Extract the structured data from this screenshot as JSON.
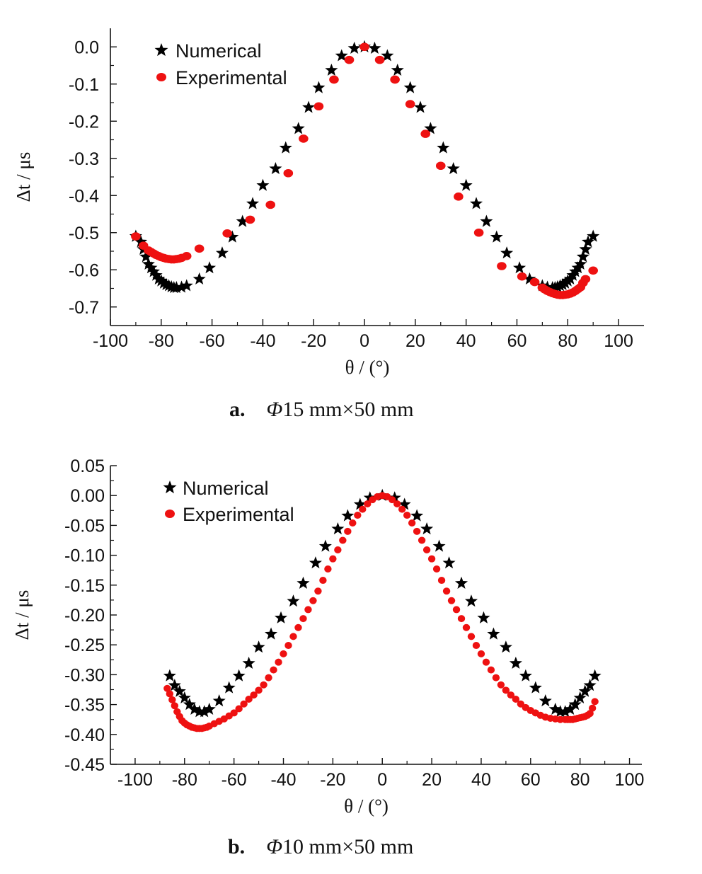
{
  "chart_data": [
    {
      "type": "scatter",
      "panel_label": "a.",
      "caption_symbol": "Φ",
      "caption_text": "15 mm×50 mm",
      "xlabel": "θ / (°)",
      "ylabel": "Δt / μs",
      "xlim": [
        -100,
        110
      ],
      "ylim": [
        -0.75,
        0.05
      ],
      "xticks": [
        -100,
        -80,
        -60,
        -40,
        -20,
        0,
        20,
        40,
        60,
        80,
        100
      ],
      "xtick_labels": [
        "-100",
        "-80",
        "-60",
        "-40",
        "-20",
        "0",
        "20",
        "40",
        "60",
        "80",
        "100"
      ],
      "yticks": [
        0.0,
        -0.1,
        -0.2,
        -0.3,
        -0.4,
        -0.5,
        -0.6,
        -0.7
      ],
      "ytick_labels": [
        "0.0",
        "-0.1",
        "-0.2",
        "-0.3",
        "-0.4",
        "-0.5",
        "-0.6",
        "-0.7"
      ],
      "legend_position": "top-left",
      "series": [
        {
          "name": "Numerical",
          "marker": "star",
          "color": "#000000",
          "x": [
            -90,
            -88,
            -87,
            -86,
            -85,
            -84,
            -83,
            -82,
            -81,
            -80,
            -79,
            -78,
            -77,
            -76,
            -75,
            -74,
            -72,
            -70,
            -65,
            -61,
            -56,
            -52,
            -48,
            -44,
            -40,
            -35,
            -31,
            -26,
            -22,
            -18,
            -13,
            -9,
            -4,
            0,
            4,
            9,
            13,
            18,
            22,
            26,
            31,
            35,
            40,
            44,
            48,
            52,
            56,
            61,
            65,
            70,
            72,
            74,
            75,
            76,
            77,
            78,
            79,
            80,
            81,
            82,
            83,
            84,
            85,
            86,
            87,
            88,
            90
          ],
          "y": [
            -0.51,
            -0.525,
            -0.545,
            -0.565,
            -0.585,
            -0.595,
            -0.605,
            -0.615,
            -0.625,
            -0.63,
            -0.636,
            -0.64,
            -0.643,
            -0.646,
            -0.648,
            -0.648,
            -0.647,
            -0.643,
            -0.625,
            -0.595,
            -0.555,
            -0.512,
            -0.47,
            -0.422,
            -0.373,
            -0.328,
            -0.272,
            -0.22,
            -0.163,
            -0.11,
            -0.063,
            -0.024,
            -0.004,
            0.0,
            -0.004,
            -0.024,
            -0.063,
            -0.11,
            -0.163,
            -0.22,
            -0.272,
            -0.328,
            -0.373,
            -0.422,
            -0.47,
            -0.512,
            -0.555,
            -0.595,
            -0.625,
            -0.643,
            -0.647,
            -0.648,
            -0.648,
            -0.646,
            -0.643,
            -0.64,
            -0.636,
            -0.63,
            -0.625,
            -0.615,
            -0.605,
            -0.595,
            -0.585,
            -0.565,
            -0.545,
            -0.525,
            -0.51
          ]
        },
        {
          "name": "Experimental",
          "marker": "circle",
          "color": "#ee1111",
          "x": [
            -90,
            -87,
            -85,
            -84,
            -83,
            -82,
            -81,
            -80,
            -79,
            -78,
            -77,
            -76,
            -75,
            -74,
            -73,
            -72,
            -70,
            -65,
            -54,
            -45,
            -37,
            -30,
            -24,
            -18,
            -12,
            -6,
            0,
            6,
            12,
            18,
            24,
            30,
            37,
            45,
            54,
            62,
            67,
            70,
            71,
            72,
            73,
            74,
            75,
            76,
            77,
            78,
            79,
            80,
            81,
            82,
            83,
            84,
            85,
            86,
            87,
            90
          ],
          "y": [
            -0.51,
            -0.535,
            -0.548,
            -0.552,
            -0.556,
            -0.56,
            -0.563,
            -0.566,
            -0.568,
            -0.57,
            -0.571,
            -0.572,
            -0.572,
            -0.571,
            -0.57,
            -0.568,
            -0.563,
            -0.543,
            -0.502,
            -0.465,
            -0.425,
            -0.34,
            -0.247,
            -0.16,
            -0.088,
            -0.035,
            0.0,
            -0.035,
            -0.088,
            -0.154,
            -0.234,
            -0.32,
            -0.403,
            -0.5,
            -0.59,
            -0.618,
            -0.633,
            -0.648,
            -0.653,
            -0.657,
            -0.66,
            -0.663,
            -0.665,
            -0.667,
            -0.668,
            -0.668,
            -0.667,
            -0.666,
            -0.664,
            -0.661,
            -0.657,
            -0.652,
            -0.647,
            -0.635,
            -0.625,
            -0.602
          ]
        }
      ]
    },
    {
      "type": "scatter",
      "panel_label": "b.",
      "caption_symbol": "Φ",
      "caption_text": "10 mm×50 mm",
      "xlabel": "θ / (°)",
      "ylabel": "Δt / μs",
      "xlim": [
        -110,
        105
      ],
      "ylim": [
        -0.45,
        0.05
      ],
      "xticks": [
        -100,
        -80,
        -60,
        -40,
        -20,
        0,
        20,
        40,
        60,
        80,
        100
      ],
      "xtick_labels": [
        "-100",
        "-80",
        "-60",
        "-40",
        "-20",
        "0",
        "20",
        "40",
        "60",
        "80",
        "100"
      ],
      "yticks": [
        0.05,
        0.0,
        -0.05,
        -0.1,
        -0.15,
        -0.2,
        -0.25,
        -0.3,
        -0.35,
        -0.4,
        -0.45
      ],
      "ytick_labels": [
        "0.05",
        "0.00",
        "-0.05",
        "-0.10",
        "-0.15",
        "-0.20",
        "-0.25",
        "-0.30",
        "-0.35",
        "-0.40",
        "-0.45"
      ],
      "legend_position": "top-left",
      "series": [
        {
          "name": "Numerical",
          "marker": "star",
          "color": "#000000",
          "x": [
            -86,
            -84,
            -82,
            -80,
            -78,
            -76,
            -74,
            -72,
            -70,
            -66,
            -62,
            -58,
            -54,
            -50,
            -45,
            -41,
            -36,
            -32,
            -27,
            -23,
            -18,
            -14,
            -9,
            -5,
            0,
            5,
            9,
            14,
            18,
            23,
            27,
            32,
            36,
            41,
            45,
            50,
            54,
            58,
            62,
            66,
            70,
            72,
            74,
            76,
            78,
            80,
            82,
            84,
            86
          ],
          "y": [
            -0.302,
            -0.318,
            -0.328,
            -0.339,
            -0.35,
            -0.358,
            -0.362,
            -0.362,
            -0.358,
            -0.344,
            -0.322,
            -0.302,
            -0.281,
            -0.254,
            -0.232,
            -0.205,
            -0.177,
            -0.147,
            -0.113,
            -0.085,
            -0.056,
            -0.034,
            -0.015,
            -0.004,
            0.0,
            -0.004,
            -0.015,
            -0.034,
            -0.056,
            -0.085,
            -0.113,
            -0.147,
            -0.177,
            -0.205,
            -0.232,
            -0.254,
            -0.281,
            -0.302,
            -0.322,
            -0.344,
            -0.358,
            -0.362,
            -0.362,
            -0.358,
            -0.35,
            -0.339,
            -0.328,
            -0.318,
            -0.302
          ],
          "x_note": ""
        },
        {
          "name": "Experimental",
          "marker": "circle",
          "color": "#ee1111",
          "x": [
            -87,
            -86,
            -85,
            -84,
            -83,
            -82,
            -81,
            -80,
            -79,
            -78,
            -77,
            -76,
            -75,
            -74,
            -73,
            -72,
            -71,
            -70,
            -68,
            -66,
            -64,
            -62,
            -60,
            -58,
            -56,
            -54,
            -52,
            -50,
            -48,
            -46,
            -44,
            -42,
            -40,
            -38,
            -36,
            -34,
            -32,
            -30,
            -28,
            -26,
            -24,
            -22,
            -20,
            -18,
            -16,
            -14,
            -12,
            -10,
            -8,
            -6,
            -4,
            -2,
            0,
            2,
            4,
            6,
            8,
            10,
            12,
            14,
            16,
            18,
            20,
            22,
            24,
            26,
            28,
            30,
            32,
            34,
            36,
            38,
            40,
            42,
            44,
            46,
            48,
            50,
            52,
            54,
            56,
            58,
            60,
            62,
            64,
            66,
            68,
            70,
            72,
            74,
            75,
            76,
            77,
            78,
            79,
            80,
            81,
            82,
            83,
            84,
            85,
            86
          ],
          "y": [
            -0.323,
            -0.332,
            -0.342,
            -0.352,
            -0.362,
            -0.37,
            -0.377,
            -0.381,
            -0.384,
            -0.386,
            -0.388,
            -0.389,
            -0.39,
            -0.39,
            -0.39,
            -0.389,
            -0.388,
            -0.386,
            -0.382,
            -0.378,
            -0.374,
            -0.369,
            -0.364,
            -0.357,
            -0.349,
            -0.341,
            -0.334,
            -0.326,
            -0.317,
            -0.305,
            -0.292,
            -0.279,
            -0.265,
            -0.251,
            -0.236,
            -0.221,
            -0.206,
            -0.191,
            -0.176,
            -0.16,
            -0.142,
            -0.123,
            -0.106,
            -0.091,
            -0.075,
            -0.06,
            -0.046,
            -0.033,
            -0.023,
            -0.014,
            -0.007,
            -0.002,
            0.0,
            -0.002,
            -0.007,
            -0.014,
            -0.023,
            -0.033,
            -0.046,
            -0.06,
            -0.075,
            -0.091,
            -0.106,
            -0.123,
            -0.142,
            -0.16,
            -0.176,
            -0.191,
            -0.206,
            -0.221,
            -0.236,
            -0.251,
            -0.265,
            -0.279,
            -0.292,
            -0.305,
            -0.317,
            -0.326,
            -0.334,
            -0.341,
            -0.349,
            -0.355,
            -0.36,
            -0.364,
            -0.368,
            -0.371,
            -0.373,
            -0.374,
            -0.375,
            -0.375,
            -0.375,
            -0.375,
            -0.375,
            -0.374,
            -0.373,
            -0.372,
            -0.371,
            -0.37,
            -0.368,
            -0.365,
            -0.356,
            -0.345
          ]
        }
      ]
    }
  ]
}
